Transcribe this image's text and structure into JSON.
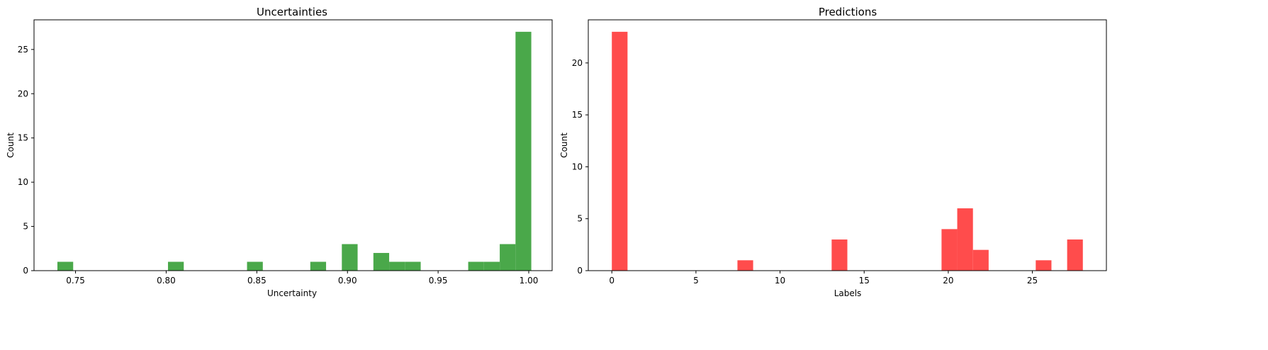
{
  "chart_data": [
    {
      "type": "bar",
      "title": "Uncertainties",
      "xlabel": "Uncertainty",
      "ylabel": "Count",
      "xlim": [
        0.7271,
        1.0129
      ],
      "ylim": [
        0,
        28.35
      ],
      "color": "#4aa84a",
      "xticks": [
        0.75,
        0.8,
        0.85,
        0.9,
        0.95,
        1.0
      ],
      "xtick_labels": [
        "0.75",
        "0.80",
        "0.85",
        "0.90",
        "0.95",
        "1.00"
      ],
      "yticks": [
        0,
        5,
        10,
        15,
        20,
        25
      ],
      "ytick_labels": [
        "0",
        "5",
        "10",
        "15",
        "20",
        "25"
      ],
      "bins": [
        {
          "x0": 0.74,
          "x1": 0.7487,
          "value": 1
        },
        {
          "x0": 0.801,
          "x1": 0.8097,
          "value": 1
        },
        {
          "x0": 0.8446,
          "x1": 0.8533,
          "value": 1
        },
        {
          "x0": 0.8795,
          "x1": 0.8882,
          "value": 1
        },
        {
          "x0": 0.8969,
          "x1": 0.9056,
          "value": 3
        },
        {
          "x0": 0.9143,
          "x1": 0.923,
          "value": 2
        },
        {
          "x0": 0.923,
          "x1": 0.9317,
          "value": 1
        },
        {
          "x0": 0.9317,
          "x1": 0.9404,
          "value": 1
        },
        {
          "x0": 0.9666,
          "x1": 0.9753,
          "value": 1
        },
        {
          "x0": 0.9753,
          "x1": 0.984,
          "value": 1
        },
        {
          "x0": 0.984,
          "x1": 0.9927,
          "value": 3
        },
        {
          "x0": 0.9927,
          "x1": 1.0014,
          "value": 27
        }
      ]
    },
    {
      "type": "bar",
      "title": "Predictions",
      "xlabel": "Labels",
      "ylabel": "Count",
      "xlim": [
        -1.4,
        29.4
      ],
      "ylim": [
        0,
        24.15
      ],
      "color": "#ff4c4c",
      "xticks": [
        0,
        5,
        10,
        15,
        20,
        25
      ],
      "xtick_labels": [
        "0",
        "5",
        "10",
        "15",
        "20",
        "25"
      ],
      "yticks": [
        0,
        5,
        10,
        15,
        20
      ],
      "ytick_labels": [
        "0",
        "5",
        "10",
        "15",
        "20"
      ],
      "bins": [
        {
          "x0": 0.0,
          "x1": 0.933,
          "value": 23
        },
        {
          "x0": 7.467,
          "x1": 8.4,
          "value": 1
        },
        {
          "x0": 13.067,
          "x1": 14.0,
          "value": 3
        },
        {
          "x0": 19.6,
          "x1": 20.533,
          "value": 4
        },
        {
          "x0": 20.533,
          "x1": 21.467,
          "value": 6
        },
        {
          "x0": 21.467,
          "x1": 22.4,
          "value": 2
        },
        {
          "x0": 25.2,
          "x1": 26.133,
          "value": 1
        },
        {
          "x0": 27.067,
          "x1": 28.0,
          "value": 3
        }
      ]
    }
  ]
}
